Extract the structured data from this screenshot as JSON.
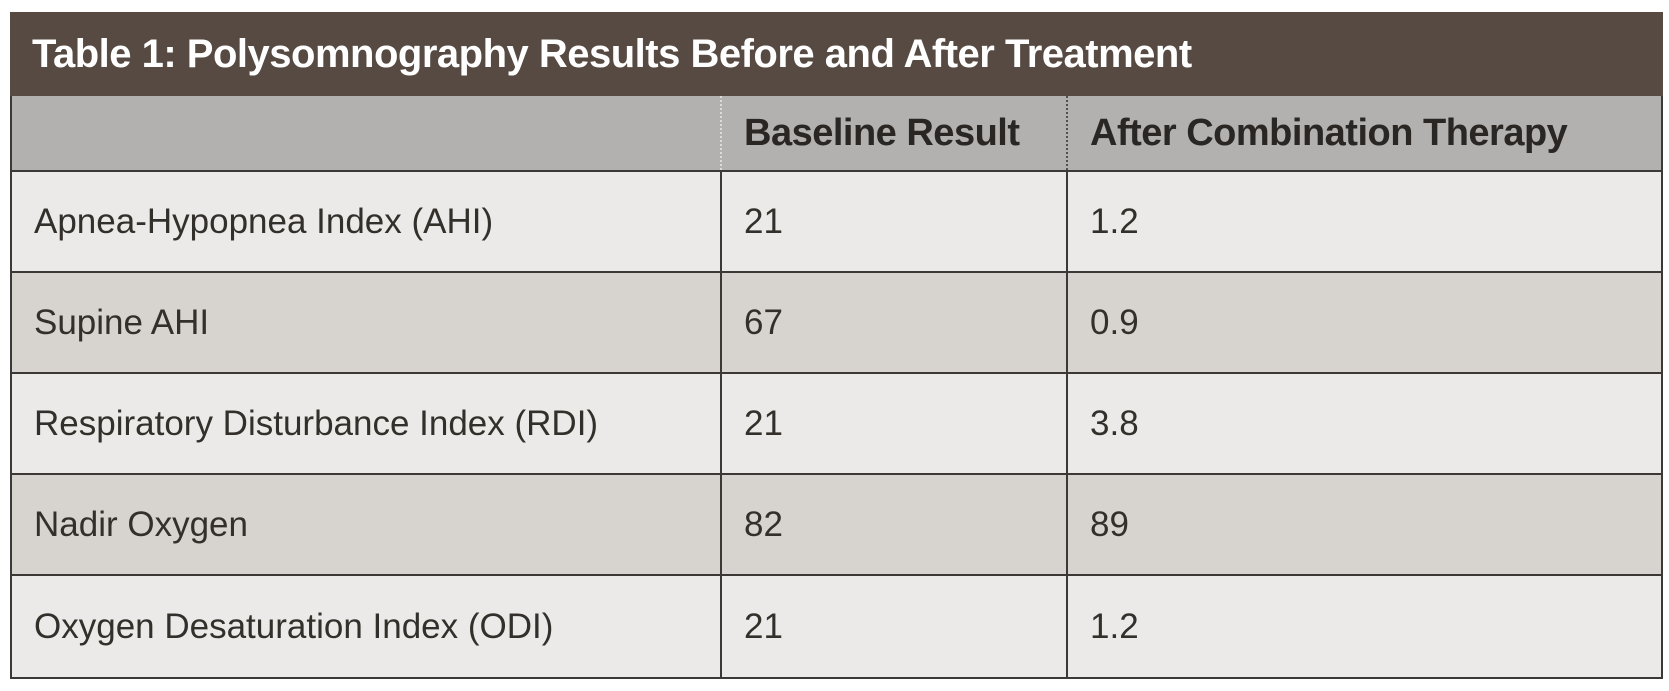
{
  "table": {
    "title": "Table 1: Polysomnography Results Before and After Treatment",
    "columns": [
      "",
      "Baseline Result",
      "After Combination Therapy"
    ],
    "rows": [
      {
        "label": "Apnea-Hypopnea Index (AHI)",
        "baseline": "21",
        "after": "1.2"
      },
      {
        "label": "Supine AHI",
        "baseline": "67",
        "after": "0.9"
      },
      {
        "label": "Respiratory Disturbance Index (RDI)",
        "baseline": "21",
        "after": "3.8"
      },
      {
        "label": "Nadir Oxygen",
        "baseline": "82",
        "after": "89"
      },
      {
        "label": "Oxygen Desaturation Index (ODI)",
        "baseline": "21",
        "after": "1.2"
      }
    ]
  },
  "colors": {
    "title-bar-bg": "#564a42",
    "title-text": "#ffffff",
    "header-bg": "#b3b1b0",
    "header-text": "#2a2623",
    "row-light-bg": "#eceae8",
    "row-dark-bg": "#d7d3cf",
    "border": "#3b3835",
    "cell-text": "#33302c"
  }
}
